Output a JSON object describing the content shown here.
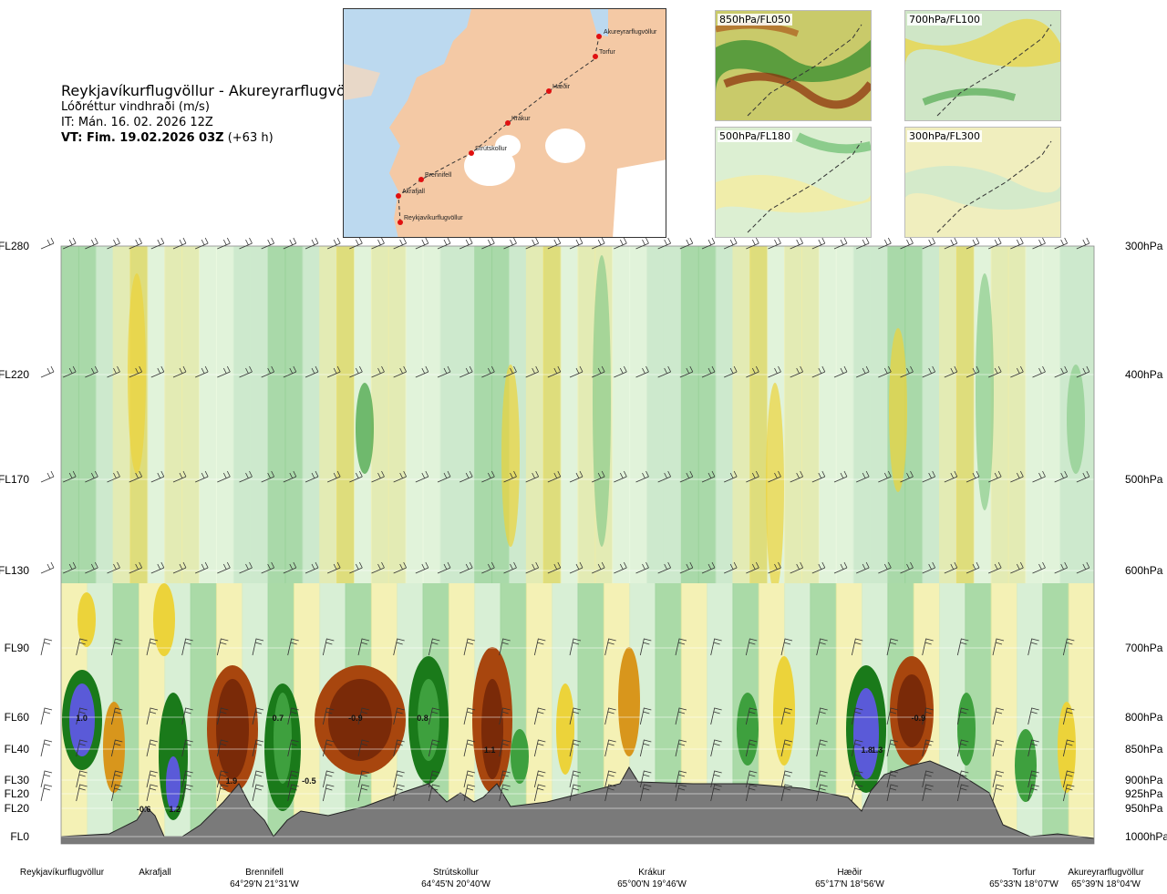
{
  "header": {
    "title": "Reykjavíkurflugvöllur - Akureyrarflugvöllur",
    "subtitle": "Lóðréttur vindhraði (m/s)",
    "issue_time": "IT: Mán. 16. 02. 2026 12Z",
    "valid_time_bold": "VT: Fim. 19.02.2026 03Z",
    "valid_time_offset": "(+63 h)"
  },
  "route_map": {
    "points": [
      "Akureyrarflugvöllur",
      "Torfur",
      "Hæðir",
      "Krákur",
      "Strútskollur",
      "Brennifell",
      "Akrafjall",
      "Reykjavíkurflugvöllur"
    ],
    "colors": {
      "land": "#f4c9a5",
      "sea": "#bcd9ef",
      "route": "#333333",
      "marker": "#e01010"
    }
  },
  "mini_maps": [
    {
      "label": "850hPa/FL050"
    },
    {
      "label": "700hPa/FL100"
    },
    {
      "label": "500hPa/FL180"
    },
    {
      "label": "300hPa/FL300"
    }
  ],
  "chart_data": {
    "type": "heatmap",
    "title": "Lóðréttur vindhraði (m/s)",
    "left_axis_labels": [
      "FL280",
      "FL220",
      "FL170",
      "FL130",
      "FL90",
      "FL60",
      "FL40",
      "FL30",
      "FL20",
      "FL20",
      "FL0"
    ],
    "right_axis_labels": [
      "300hPa",
      "400hPa",
      "500hPa",
      "600hPa",
      "700hPa",
      "800hPa",
      "850hPa",
      "900hPa",
      "925hPa",
      "950hPa",
      "1000hPa"
    ],
    "pressure_levels_hpa": [
      300,
      400,
      500,
      600,
      700,
      800,
      850,
      900,
      925,
      950,
      1000
    ],
    "waypoints": [
      {
        "name": "Reykjavíkurflugvöllur",
        "coord": ""
      },
      {
        "name": "Akrafjall",
        "coord": ""
      },
      {
        "name": "Brennifell",
        "coord": "64°29'N 21°31'W"
      },
      {
        "name": "Strútskollur",
        "coord": "64°45'N 20°40'W"
      },
      {
        "name": "Krákur",
        "coord": "65°00'N 19°46'W"
      },
      {
        "name": "Hæðir",
        "coord": "65°17'N 18°56'W"
      },
      {
        "name": "Torfur",
        "coord": "65°33'N 18°07'W"
      },
      {
        "name": "Akureyrarflugvöllur",
        "coord": "65°39'N 18°04'W"
      }
    ],
    "annotations": [
      {
        "text": "1.0",
        "x_frac": 0.02,
        "level_hpa": 800
      },
      {
        "text": "-0.6",
        "x_frac": 0.08,
        "level_hpa": 950
      },
      {
        "text": "1.2",
        "x_frac": 0.11,
        "level_hpa": 950
      },
      {
        "text": "1.9",
        "x_frac": 0.165,
        "level_hpa": 900
      },
      {
        "text": "0.7",
        "x_frac": 0.21,
        "level_hpa": 800
      },
      {
        "text": "-0.5",
        "x_frac": 0.24,
        "level_hpa": 900
      },
      {
        "text": "-0.9",
        "x_frac": 0.285,
        "level_hpa": 800
      },
      {
        "text": "0.8",
        "x_frac": 0.35,
        "level_hpa": 800
      },
      {
        "text": "1.1",
        "x_frac": 0.415,
        "level_hpa": 850
      },
      {
        "text": "1.8",
        "x_frac": 0.78,
        "level_hpa": 850
      },
      {
        "text": "1.3",
        "x_frac": 0.79,
        "level_hpa": 850
      },
      {
        "text": "-0.9",
        "x_frac": 0.83,
        "level_hpa": 800
      }
    ],
    "colorscale": {
      "strong_up": "#5a5ad8",
      "up3": "#1a7a1a",
      "up2": "#3ea03e",
      "up1": "#8ccc8c",
      "up0": "#cde9cd",
      "zero": "#f2fbe6",
      "dn0": "#f5eca0",
      "dn1": "#ecd33a",
      "dn2": "#d8961c",
      "dn3": "#a8460e",
      "strong_dn": "#7a2a08",
      "terrain": "#7a7a7a"
    }
  }
}
